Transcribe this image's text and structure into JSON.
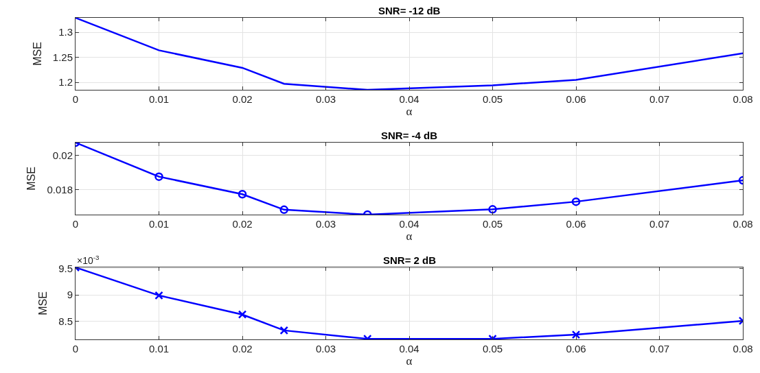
{
  "chart_data": [
    {
      "type": "line",
      "title": "SNR= -12 dB",
      "xlabel": "α",
      "ylabel": "MSE",
      "x": [
        0,
        0.01,
        0.02,
        0.025,
        0.035,
        0.05,
        0.06,
        0.08
      ],
      "series": [
        {
          "color": "#0000ff",
          "values": [
            1.329,
            1.264,
            1.229,
            1.197,
            1.185,
            1.194,
            1.205,
            1.258
          ]
        }
      ],
      "xlim": [
        0,
        0.08
      ],
      "xticks": [
        0,
        0.01,
        0.02,
        0.03,
        0.04,
        0.05,
        0.06,
        0.07,
        0.08
      ],
      "ylim": [
        1.185,
        1.329
      ],
      "yticks": [
        1.2,
        1.25,
        1.3
      ],
      "grid": true,
      "marker": "none",
      "line_style": "solid"
    },
    {
      "type": "line",
      "title": "SNR= -4 dB",
      "xlabel": "α",
      "ylabel": "MSE",
      "x": [
        0,
        0.01,
        0.02,
        0.025,
        0.035,
        0.05,
        0.06,
        0.08
      ],
      "series": [
        {
          "color": "#0000ff",
          "values": [
            0.02075,
            0.01875,
            0.01772,
            0.01681,
            0.01652,
            0.01683,
            0.01728,
            0.01853
          ]
        }
      ],
      "xlim": [
        0,
        0.08
      ],
      "xticks": [
        0,
        0.01,
        0.02,
        0.03,
        0.04,
        0.05,
        0.06,
        0.07,
        0.08
      ],
      "ylim": [
        0.01652,
        0.02075
      ],
      "yticks": [
        0.018,
        0.02
      ],
      "grid": true,
      "marker": "circle",
      "line_style": "solid"
    },
    {
      "type": "line",
      "title": "SNR= 2 dB",
      "xlabel": "α",
      "ylabel": "MSE",
      "annotations": [
        "×10$^{-3}$"
      ],
      "x": [
        0,
        0.01,
        0.02,
        0.025,
        0.035,
        0.05,
        0.06,
        0.08
      ],
      "series": [
        {
          "color": "#0000ff",
          "values": [
            9.52,
            8.99,
            8.63,
            8.33,
            8.17,
            8.17,
            8.25,
            8.51
          ]
        }
      ],
      "xlim": [
        0,
        0.08
      ],
      "xticks": [
        0,
        0.01,
        0.02,
        0.03,
        0.04,
        0.05,
        0.06,
        0.07,
        0.08
      ],
      "ylim": [
        8.16,
        9.52
      ],
      "yticks": [
        8.5,
        9,
        9.5
      ],
      "grid": true,
      "marker": "cross",
      "line_style": "solid"
    }
  ]
}
